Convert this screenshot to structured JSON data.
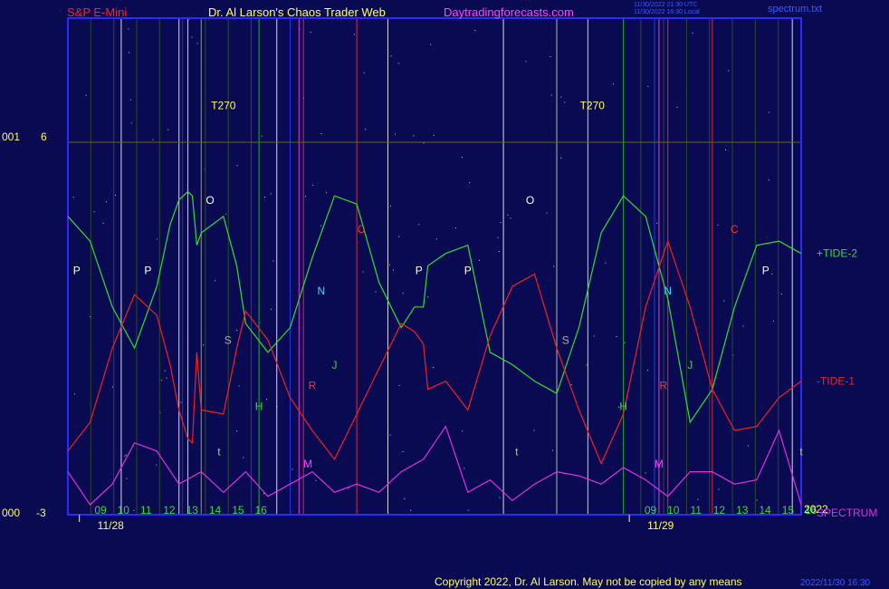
{
  "header": {
    "symbol": "S&P E-Mini",
    "title": "Dr. Al Larson's Chaos Trader Web",
    "site": "Daytradingforecasts.com",
    "timestamp_utc": "11/30/2022 21:30 UTC",
    "timestamp_local": "11/30/2022 16:30 Local",
    "spectrum_file": "spectrum.txt"
  },
  "footer": {
    "copyright": "Copyright 2022, Dr. Al Larson. May not be copied by any means",
    "stamp": "2022/11/30 16:30"
  },
  "colors": {
    "background": "#0a0a52",
    "frame": "#2a2aff",
    "tide2": "#33dd33",
    "tide1": "#ee2222",
    "spectrum": "#dd33dd",
    "grid": "#6a6a00"
  },
  "chart_data": {
    "type": "line",
    "title": "S&P E-Mini",
    "y_axis_left": {
      "top_label": "6",
      "bottom_label": "-3"
    },
    "y_axis_outer": {
      "top_label": "001",
      "bottom_label": "000"
    },
    "x_hour_labels": [
      "09",
      "10",
      "11",
      "12",
      "13",
      "14",
      "15",
      "16",
      "09",
      "10",
      "11",
      "12",
      "13",
      "14",
      "15",
      "16"
    ],
    "x_hour_values": [
      9,
      10,
      11,
      12,
      13,
      14,
      15,
      16,
      33,
      34,
      35,
      36,
      37,
      38,
      39,
      40
    ],
    "date_labels": [
      {
        "label": "11/28",
        "x": 8.5
      },
      {
        "label": "11/29",
        "x": 32.5
      }
    ],
    "x_range": [
      8.0,
      40.0
    ],
    "year_label": "2022",
    "series": [
      {
        "name": "+TIDE-2",
        "color": "#33dd33",
        "x": [
          8.0,
          8.5,
          9.0,
          9.5,
          10.0,
          10.3,
          10.5,
          10.7,
          10.8,
          10.9,
          11.0,
          11.5,
          11.8,
          12.0,
          12.5,
          13.0,
          13.5,
          14.0,
          14.5,
          15.0,
          15.5,
          15.8,
          16.0,
          16.1,
          16.5,
          17.0,
          17.5,
          18.0,
          18.5,
          19.0,
          19.5,
          20.0,
          20.5,
          21.0,
          21.5,
          22.0,
          22.5,
          23.0,
          23.5,
          24.0,
          24.5
        ],
        "y": [
          4.2,
          3.6,
          2.0,
          1.0,
          2.5,
          4.0,
          4.6,
          4.8,
          4.7,
          3.5,
          3.8,
          4.2,
          3.0,
          1.6,
          0.9,
          1.5,
          3.2,
          4.7,
          4.5,
          2.6,
          1.5,
          2.0,
          2.0,
          3.0,
          3.3,
          3.5,
          0.9,
          0.6,
          0.2,
          -0.1,
          1.5,
          3.8,
          4.7,
          4.2,
          2.2,
          -0.8,
          0.0,
          2.0,
          3.5,
          3.6,
          3.3
        ]
      },
      {
        "name": "-TIDE-1",
        "color": "#ee2222",
        "x": [
          8.0,
          8.5,
          9.0,
          9.5,
          10.0,
          10.3,
          10.5,
          10.7,
          10.8,
          10.9,
          11.0,
          11.5,
          11.8,
          12.0,
          12.5,
          13.0,
          13.5,
          14.0,
          14.5,
          15.0,
          15.5,
          15.8,
          16.0,
          16.1,
          16.5,
          17.0,
          17.5,
          18.0,
          18.5,
          19.0,
          19.5,
          20.0,
          20.5,
          21.0,
          21.5,
          22.0,
          22.5,
          23.0,
          23.5,
          24.0,
          24.5
        ],
        "y": [
          -1.5,
          -0.8,
          1.0,
          2.3,
          1.8,
          0.6,
          -0.5,
          -1.2,
          -1.3,
          0.9,
          -0.5,
          -0.6,
          1.0,
          1.9,
          1.2,
          -0.2,
          -1.0,
          -1.7,
          -0.6,
          0.5,
          1.6,
          1.4,
          1.1,
          0.0,
          0.2,
          -0.5,
          1.3,
          2.5,
          2.8,
          1.0,
          -0.5,
          -1.8,
          -0.6,
          2.0,
          3.6,
          2.0,
          0.0,
          -1.0,
          -0.9,
          -0.2,
          0.2
        ]
      },
      {
        "name": "SPECTRUM",
        "color": "#dd33dd",
        "x": [
          8.0,
          8.5,
          9.0,
          9.5,
          10.0,
          10.5,
          11.0,
          11.5,
          12.0,
          12.5,
          13.0,
          13.5,
          14.0,
          14.5,
          15.0,
          15.5,
          16.0,
          16.5,
          17.0,
          17.5,
          18.0,
          18.5,
          19.0,
          19.5,
          20.0,
          20.5,
          21.0,
          21.5,
          22.0,
          22.5,
          23.0,
          23.5,
          24.0,
          24.5
        ],
        "y": [
          -2.0,
          -2.8,
          -2.3,
          -1.3,
          -1.5,
          -2.3,
          -2.0,
          -2.5,
          -2.0,
          -2.6,
          -2.3,
          -2.0,
          -2.5,
          -2.3,
          -2.5,
          -2.0,
          -1.7,
          -0.9,
          -2.5,
          -2.2,
          -2.7,
          -2.3,
          -2.0,
          -2.1,
          -2.3,
          -1.9,
          -2.2,
          -2.6,
          -2.0,
          -2.0,
          -2.3,
          -2.2,
          -1.0,
          -2.8
        ]
      }
    ],
    "event_lines": [
      {
        "label": "P",
        "color": "#ffffff",
        "x": [
          8.0,
          9.2,
          12.7,
          15.2,
          19.0,
          24.3
        ]
      },
      {
        "label": "T270",
        "color": "#ffff66",
        "x": [
          10.7,
          19.7
        ]
      },
      {
        "label": "O",
        "color": "#ffffff",
        "x": [
          10.5,
          17.8
        ]
      },
      {
        "label": "S",
        "color": "#aaaaaa",
        "x": [
          11.0,
          19.0
        ]
      },
      {
        "label": "N",
        "color": "#2244ff",
        "x": [
          13.0,
          21.2
        ]
      },
      {
        "label": "M",
        "color": "#ff44ff",
        "x": [
          13.2,
          21.3
        ]
      },
      {
        "label": "R",
        "color": "#ff3333",
        "x": [
          13.3,
          21.5
        ]
      },
      {
        "label": "H",
        "color": "#22cc22",
        "x": [
          12.3,
          20.5
        ]
      },
      {
        "label": "C",
        "color": "#ff3333",
        "x": [
          14.5,
          22.5
        ]
      }
    ],
    "letter_labels": [
      {
        "t": "P",
        "x": 8.2,
        "y": 2.8,
        "c": "#ffffff"
      },
      {
        "t": "P",
        "x": 9.8,
        "y": 2.8,
        "c": "#ffffff"
      },
      {
        "t": "P",
        "x": 15.9,
        "y": 2.8,
        "c": "#ffffff"
      },
      {
        "t": "P",
        "x": 17.0,
        "y": 2.8,
        "c": "#ffffff"
      },
      {
        "t": "P",
        "x": 23.7,
        "y": 2.8,
        "c": "#ffffff"
      },
      {
        "t": "T270",
        "x": 11.5,
        "y": 6.8,
        "c": "#ffff66"
      },
      {
        "t": "T270",
        "x": 19.8,
        "y": 6.8,
        "c": "#ffff66"
      },
      {
        "t": "O",
        "x": 11.2,
        "y": 4.5,
        "c": "#ffffff"
      },
      {
        "t": "O",
        "x": 18.4,
        "y": 4.5,
        "c": "#ffffff"
      },
      {
        "t": "S",
        "x": 11.6,
        "y": 1.1,
        "c": "#aaaaaa"
      },
      {
        "t": "S",
        "x": 19.2,
        "y": 1.1,
        "c": "#aaaaaa"
      },
      {
        "t": "N",
        "x": 13.7,
        "y": 2.3,
        "c": "#33ddff"
      },
      {
        "t": "N",
        "x": 21.5,
        "y": 2.3,
        "c": "#33ddff"
      },
      {
        "t": "M",
        "x": 13.4,
        "y": -1.9,
        "c": "#ff44ff"
      },
      {
        "t": "M",
        "x": 21.3,
        "y": -1.9,
        "c": "#ff44ff"
      },
      {
        "t": "R",
        "x": 13.5,
        "y": 0.0,
        "c": "#ff3333"
      },
      {
        "t": "R",
        "x": 21.4,
        "y": 0.0,
        "c": "#ff3333"
      },
      {
        "t": "H",
        "x": 12.3,
        "y": -0.5,
        "c": "#33dd33"
      },
      {
        "t": "H",
        "x": 20.5,
        "y": -0.5,
        "c": "#33dd33"
      },
      {
        "t": "C",
        "x": 14.6,
        "y": 3.8,
        "c": "#ff3333"
      },
      {
        "t": "C",
        "x": 23.0,
        "y": 3.8,
        "c": "#ff3333"
      },
      {
        "t": "J",
        "x": 14.0,
        "y": 0.5,
        "c": "#33dd33"
      },
      {
        "t": "J",
        "x": 22.0,
        "y": 0.5,
        "c": "#33dd33"
      },
      {
        "t": "t",
        "x": 11.4,
        "y": -1.6,
        "c": "#bbbbbb"
      },
      {
        "t": "t",
        "x": 18.1,
        "y": -1.6,
        "c": "#bbbbbb"
      },
      {
        "t": "t",
        "x": 24.5,
        "y": -1.6,
        "c": "#bbbbbb"
      }
    ],
    "series_end_labels": [
      {
        "name": "+TIDE-2",
        "y": 3.3,
        "color": "#33dd33"
      },
      {
        "name": "-TIDE-1",
        "y": 0.2,
        "color": "#ee2222"
      },
      {
        "name": "SPECTRUM",
        "y": -3.0,
        "color": "#dd33dd"
      }
    ],
    "ylim": [
      -3,
      6
    ],
    "grid": true
  }
}
